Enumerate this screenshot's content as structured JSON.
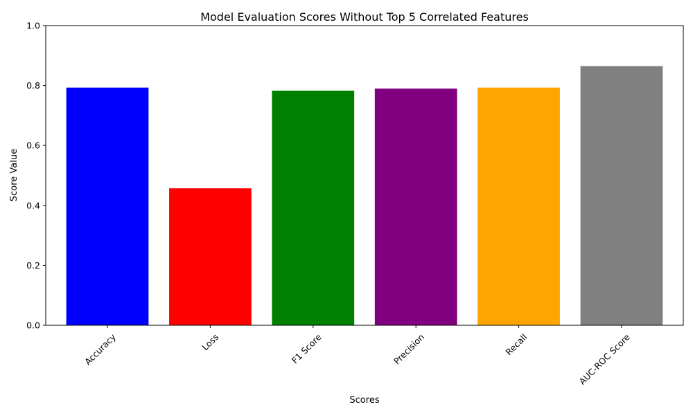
{
  "chart_data": {
    "type": "bar",
    "title": "Model Evaluation Scores Without Top 5 Correlated Features",
    "xlabel": "Scores",
    "ylabel": "Score Value",
    "categories": [
      "Accuracy",
      "Loss",
      "F1 Score",
      "Precision",
      "Recall",
      "AUC-ROC Score"
    ],
    "values": [
      0.793,
      0.457,
      0.783,
      0.79,
      0.793,
      0.865
    ],
    "colors": [
      "#0000ff",
      "#ff0000",
      "#008000",
      "#800080",
      "#ffa500",
      "#808080"
    ],
    "ylim": [
      0,
      1.0
    ],
    "yticks": [
      "0.0",
      "0.2",
      "0.4",
      "0.6",
      "0.8",
      "1.0"
    ],
    "xtick_rotation": 45,
    "grid": false,
    "legend": false
  }
}
